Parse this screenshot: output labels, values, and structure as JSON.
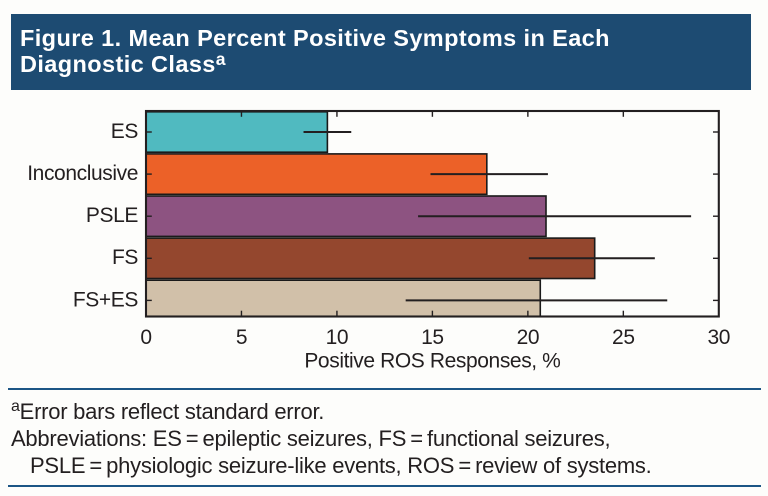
{
  "header": {
    "title_line1": "Figure 1. Mean Percent Positive Symptoms in Each",
    "title_line2": "Diagnostic Class",
    "title_superscript": "a",
    "band_color": "#1d4b72",
    "title_color": "#ffffff"
  },
  "chart_data": {
    "type": "bar",
    "orientation": "horizontal",
    "categories": [
      "ES",
      "Inconclusive",
      "PSLE",
      "FS",
      "FS+ES"
    ],
    "values": [
      9.5,
      17.85,
      20.95,
      23.5,
      20.65
    ],
    "error_low": [
      8.25,
      14.9,
      14.25,
      20.05,
      13.6
    ],
    "error_high": [
      10.75,
      21.05,
      28.55,
      26.65,
      27.3
    ],
    "bar_colors": [
      "#50bac0",
      "#ec6128",
      "#8d5381",
      "#94472e",
      "#d1c0a9"
    ],
    "bar_edge_color": "#1a1a1a",
    "xlabel": "Positive ROS Responses, %",
    "xlim": [
      0,
      30
    ],
    "xticks": [
      0,
      5,
      10,
      15,
      20,
      25,
      30
    ],
    "grid": false,
    "legend": false,
    "axis_color": "#231f20",
    "error_bar_note": "Error bars reflect standard error"
  },
  "footnotes": {
    "note_superscript": "a",
    "note_text": "Error bars reflect standard error.",
    "abbreviations_line1": "Abbreviations: ES = epileptic seizures, FS = functional seizures,",
    "abbreviations_line2": "PSLE = physiologic seizure-like events, ROS = review of systems.",
    "rule_color": "#1c5585",
    "text_color": "#231f20"
  }
}
